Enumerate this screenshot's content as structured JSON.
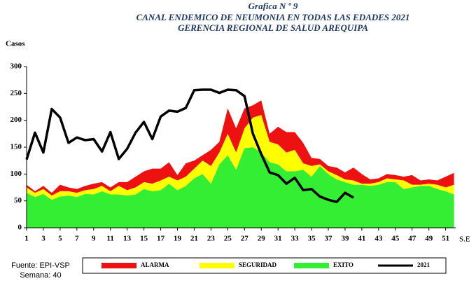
{
  "chart_data": {
    "type": "area",
    "title": "Grafica N º 9",
    "subtitle": [
      "CANAL ENDEMICO DE NEUMONIA EN TODAS LAS EDADES 2021",
      "GERENCIA REGIONAL DE SALUD AREQUIPA"
    ],
    "y_label": "Casos",
    "x_label": "S.E",
    "footnote": [
      "Fuente: EPI-VSP",
      "Semana: 40"
    ],
    "x": [
      1,
      2,
      3,
      4,
      5,
      6,
      7,
      8,
      9,
      10,
      11,
      12,
      13,
      14,
      15,
      16,
      17,
      18,
      19,
      20,
      21,
      22,
      23,
      24,
      25,
      26,
      27,
      28,
      29,
      30,
      31,
      32,
      33,
      34,
      35,
      36,
      37,
      38,
      39,
      40,
      41,
      42,
      43,
      44,
      45,
      46,
      47,
      48,
      49,
      50,
      51,
      52
    ],
    "xlim": [
      1,
      52.2
    ],
    "xticks": [
      1,
      3,
      5,
      7,
      9,
      11,
      13,
      15,
      17,
      19,
      21,
      23,
      25,
      27,
      29,
      31,
      33,
      35,
      37,
      39,
      41,
      43,
      45,
      47,
      49,
      51
    ],
    "ylim": [
      0,
      300
    ],
    "yticks": [
      0,
      50,
      100,
      150,
      200,
      250,
      300
    ],
    "stacked": true,
    "series": [
      {
        "name": "ALARMA",
        "type": "area",
        "color": "#ee1111",
        "values": [
          5,
          3,
          6,
          5,
          12,
          7,
          7,
          8,
          10,
          7,
          7,
          7,
          15,
          20,
          20,
          28,
          22,
          27,
          10,
          25,
          15,
          10,
          30,
          20,
          47,
          45,
          37,
          23,
          27,
          15,
          33,
          38,
          33,
          38,
          15,
          10,
          10,
          14,
          13,
          24,
          18,
          8,
          7,
          8,
          8,
          7,
          18,
          8,
          8,
          8,
          20,
          22
        ]
      },
      {
        "name": "SEGURIDAD",
        "type": "area",
        "color": "#ffff00",
        "values": [
          10,
          8,
          9,
          8,
          10,
          8,
          8,
          7,
          10,
          10,
          6,
          16,
          10,
          13,
          13,
          14,
          18,
          13,
          18,
          17,
          18,
          25,
          33,
          22,
          40,
          32,
          37,
          55,
          70,
          38,
          37,
          35,
          40,
          12,
          20,
          3,
          5,
          8,
          5,
          8,
          2,
          4,
          5,
          7,
          5,
          16,
          5,
          2,
          4,
          8,
          7,
          18
        ]
      },
      {
        "name": "EXITO",
        "type": "area",
        "color": "#33ee33",
        "values": [
          65,
          57,
          63,
          52,
          58,
          60,
          57,
          63,
          62,
          68,
          62,
          62,
          60,
          62,
          72,
          68,
          70,
          82,
          70,
          78,
          92,
          100,
          82,
          118,
          135,
          108,
          148,
          150,
          140,
          122,
          118,
          105,
          105,
          108,
          95,
          115,
          100,
          90,
          85,
          80,
          80,
          78,
          80,
          85,
          85,
          72,
          75,
          78,
          78,
          72,
          68,
          62
        ]
      },
      {
        "name": "2021",
        "type": "line",
        "color": "#000000",
        "values": [
          127,
          177,
          140,
          221,
          205,
          158,
          168,
          163,
          165,
          142,
          178,
          128,
          147,
          177,
          197,
          165,
          207,
          218,
          216,
          223,
          256,
          257,
          257,
          251,
          257,
          256,
          245,
          175,
          137,
          103,
          98,
          82,
          93,
          70,
          72,
          58,
          52,
          48,
          65,
          56,
          null,
          null,
          null,
          null,
          null,
          null,
          null,
          null,
          null,
          null,
          null,
          null
        ]
      }
    ]
  }
}
